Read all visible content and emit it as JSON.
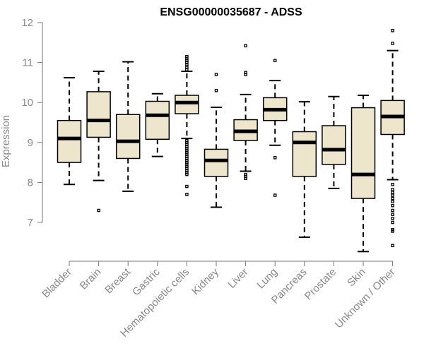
{
  "chart_data": {
    "type": "boxplot",
    "title": "ENSG00000035687 - ADSS",
    "xlabel": "",
    "ylabel": "Expression",
    "ylim": [
      6.25,
      12
    ],
    "yticks": [
      7,
      8,
      9,
      10,
      11,
      12
    ],
    "box_color": "#ede6cc",
    "categories": [
      "Bladder",
      "Brain",
      "Breast",
      "Gastric",
      "Hematopoietic cells",
      "Kidney",
      "Liver",
      "Lung",
      "Pancreas",
      "Prostate",
      "Skin",
      "Unknown / Other"
    ],
    "boxes": [
      {
        "category": "Bladder",
        "whisker_low": 7.95,
        "q1": 8.5,
        "median": 9.1,
        "q3": 9.55,
        "whisker_high": 10.62,
        "outliers": []
      },
      {
        "category": "Brain",
        "whisker_low": 8.05,
        "q1": 9.13,
        "median": 9.55,
        "q3": 10.27,
        "whisker_high": 10.78,
        "outliers": [
          7.3
        ]
      },
      {
        "category": "Breast",
        "whisker_low": 7.78,
        "q1": 8.6,
        "median": 9.03,
        "q3": 9.7,
        "whisker_high": 11.02,
        "outliers": []
      },
      {
        "category": "Gastric",
        "whisker_low": 8.65,
        "q1": 9.08,
        "median": 9.68,
        "q3": 10.03,
        "whisker_high": 10.22,
        "outliers": []
      },
      {
        "category": "Hematopoietic cells",
        "whisker_low": 9.1,
        "q1": 9.72,
        "median": 10.0,
        "q3": 10.18,
        "whisker_high": 10.78,
        "outliers": [
          11.15,
          11.1,
          11.05,
          11.0,
          10.95,
          10.88,
          10.82,
          9.05,
          9.0,
          8.95,
          8.9,
          8.85,
          8.8,
          8.75,
          8.7,
          8.65,
          8.6,
          8.55,
          8.5,
          8.45,
          8.4,
          8.35,
          8.3,
          8.25,
          8.2,
          7.9,
          7.7
        ]
      },
      {
        "category": "Kidney",
        "whisker_low": 7.38,
        "q1": 8.15,
        "median": 8.55,
        "q3": 8.83,
        "whisker_high": 9.88,
        "outliers": [
          10.7,
          10.3
        ]
      },
      {
        "category": "Liver",
        "whisker_low": 8.28,
        "q1": 9.05,
        "median": 9.28,
        "q3": 9.57,
        "whisker_high": 10.2,
        "outliers": [
          11.42,
          10.75,
          10.7,
          8.2,
          8.15,
          8.1
        ]
      },
      {
        "category": "Lung",
        "whisker_low": 8.93,
        "q1": 9.55,
        "median": 9.82,
        "q3": 10.12,
        "whisker_high": 10.55,
        "outliers": [
          11.05,
          8.62,
          7.68
        ]
      },
      {
        "category": "Pancreas",
        "whisker_low": 6.63,
        "q1": 8.15,
        "median": 9.0,
        "q3": 9.27,
        "whisker_high": 10.02,
        "outliers": []
      },
      {
        "category": "Prostate",
        "whisker_low": 7.85,
        "q1": 8.45,
        "median": 8.82,
        "q3": 9.42,
        "whisker_high": 10.15,
        "outliers": []
      },
      {
        "category": "Skin",
        "whisker_low": 6.27,
        "q1": 7.6,
        "median": 8.2,
        "q3": 9.87,
        "whisker_high": 10.18,
        "outliers": []
      },
      {
        "category": "Unknown / Other",
        "whisker_low": 8.07,
        "q1": 9.2,
        "median": 9.65,
        "q3": 10.05,
        "whisker_high": 11.3,
        "outliers": [
          11.8,
          11.48,
          7.95,
          7.82,
          7.75,
          7.68,
          7.6,
          7.52,
          7.42,
          7.3,
          7.2,
          7.1,
          7.0,
          6.82,
          6.78,
          6.42
        ]
      }
    ]
  }
}
